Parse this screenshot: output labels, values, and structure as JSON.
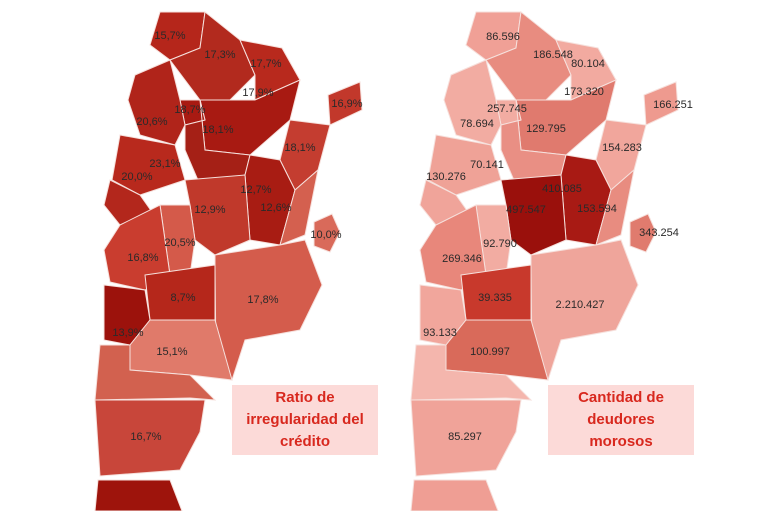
{
  "maps": [
    {
      "labels": [
        "15,7%",
        "17,3%",
        "17,7%",
        "18,7%",
        "17,9%",
        "16,9%",
        "20,6%",
        "18,1%",
        "18,1%",
        "23,1%",
        "20,0%",
        "12,7%",
        "12,9%",
        "12,6%",
        "10,0%",
        "20,5%",
        "16,8%",
        "17,8%",
        "8,7%",
        "13,9%",
        "15,1%",
        "16,7%"
      ],
      "legend": [
        "Ratio de",
        "irregularidad del",
        "crédito"
      ]
    },
    {
      "labels": [
        "86.596",
        "186.548",
        "80.104",
        "257.745",
        "173.320",
        "166.251",
        "78.694",
        "129.795",
        "154.283",
        "70.141",
        "130.276",
        "410.085",
        "497.547",
        "153.594",
        "343.254",
        "92.790",
        "269.346",
        "39.335",
        "2.210.427",
        "93.133",
        "100.997",
        "85.297"
      ],
      "legend": [
        "Cantidad de",
        "deudores",
        "morosos"
      ]
    }
  ]
}
